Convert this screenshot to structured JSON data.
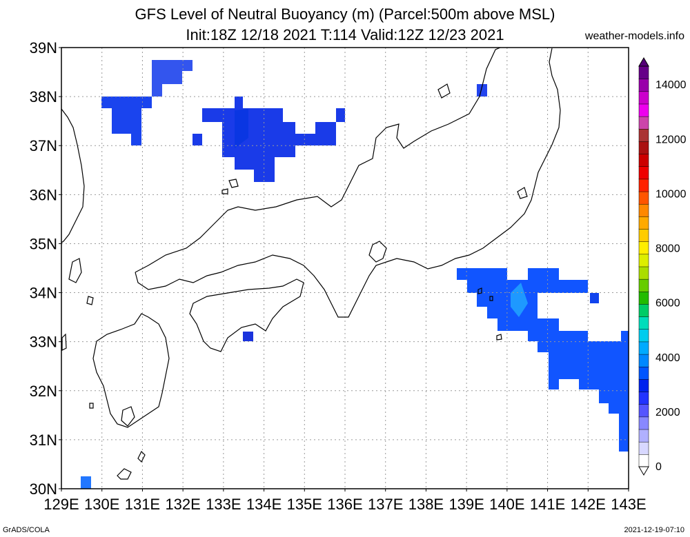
{
  "title_line1": "GFS Level of Neutral Buoyancy (m) (Parcel:500m above MSL)",
  "title_line2": "Init:18Z 12/18 2021 T:114 Valid:12Z 12/23 2021",
  "site": "weather-models.info",
  "footer_left": "GrADS/COLA",
  "footer_right": "2021-12-19-07:10",
  "map": {
    "lon_range": [
      129,
      143
    ],
    "lat_range": [
      30,
      39
    ],
    "lat_labels": [
      "30N",
      "31N",
      "32N",
      "33N",
      "34N",
      "35N",
      "36N",
      "37N",
      "38N",
      "39N"
    ],
    "lon_labels": [
      "129E",
      "130E",
      "131E",
      "132E",
      "133E",
      "134E",
      "135E",
      "136E",
      "137E",
      "138E",
      "139E",
      "140E",
      "141E",
      "142E",
      "143E"
    ]
  },
  "colorbar": {
    "labels": [
      "0",
      "2000",
      "4000",
      "6000",
      "8000",
      "10000",
      "12000",
      "14000"
    ],
    "colors": [
      "#ffffff",
      "#d8d8ff",
      "#b0b0ff",
      "#8888ff",
      "#5555ff",
      "#2233ff",
      "#0022ee",
      "#0055ff",
      "#0088ff",
      "#00aaff",
      "#00ccee",
      "#00ddbb",
      "#00cc66",
      "#22bb00",
      "#66cc00",
      "#aadd00",
      "#ddee00",
      "#ffee00",
      "#ffcc00",
      "#ffaa00",
      "#ff8800",
      "#ff5500",
      "#ff2200",
      "#ee0000",
      "#cc0000",
      "#aa1111",
      "#aa3333",
      "#cc44aa",
      "#ee00ee",
      "#cc00cc",
      "#9900aa",
      "#660088"
    ]
  },
  "fields": [
    {
      "name": "sea-of-japan-west",
      "cells": [
        [
          130,
          38
        ],
        [
          130.25,
          38
        ],
        [
          130.5,
          38
        ],
        [
          130.75,
          38
        ],
        [
          131,
          38
        ],
        [
          130.25,
          37.75
        ],
        [
          130.5,
          37.75
        ],
        [
          130.75,
          37.75
        ],
        [
          130.25,
          37.5
        ],
        [
          130.5,
          37.5
        ],
        [
          130.75,
          37.5
        ],
        [
          130.75,
          37.25
        ]
      ]
    },
    {
      "name": "oki-north",
      "cells": [
        [
          131.25,
          38.5
        ],
        [
          131.5,
          38.5
        ],
        [
          131.75,
          38.5
        ],
        [
          132,
          38.5
        ],
        [
          131.25,
          38.25
        ],
        [
          131.5,
          38.25
        ],
        [
          131.75,
          38.25
        ],
        [
          131.25,
          38
        ]
      ]
    }
  ]
}
